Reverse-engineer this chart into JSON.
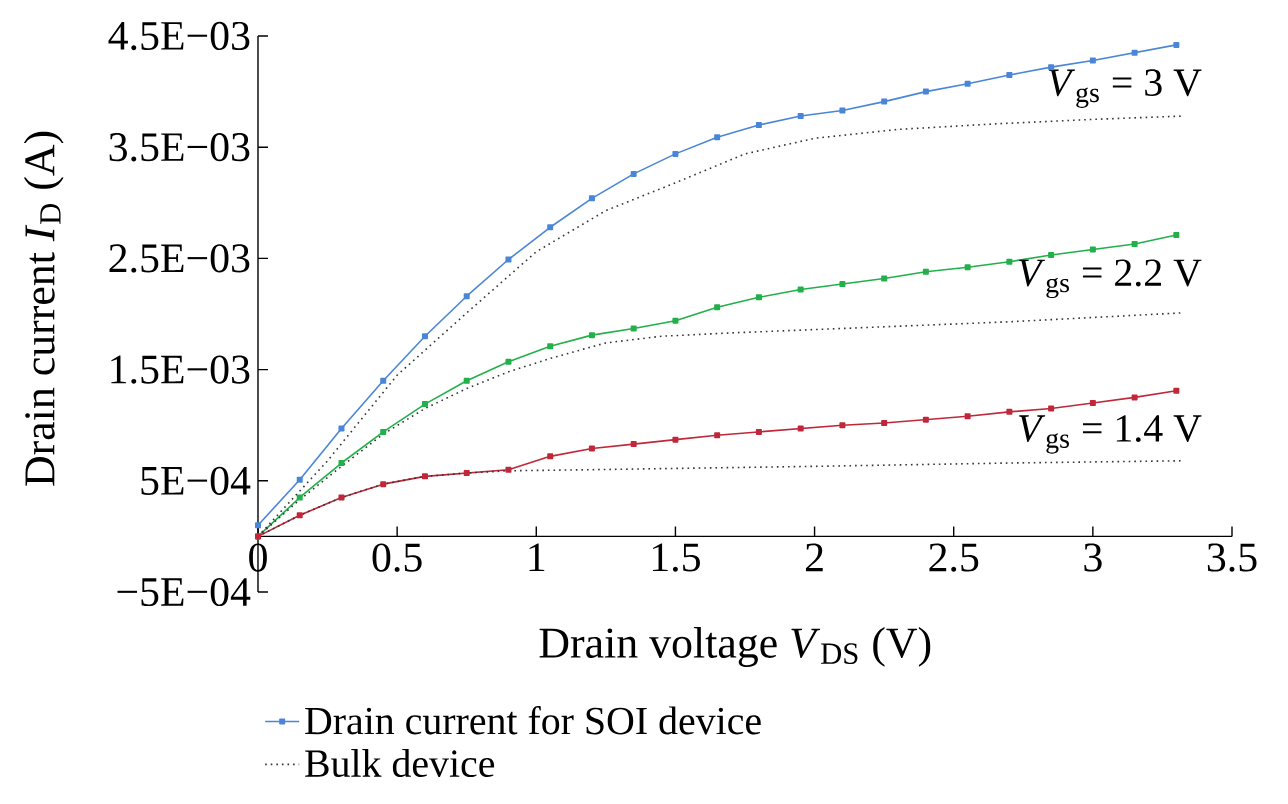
{
  "chart_data": {
    "type": "line",
    "xlabel": "Drain voltage *V*$_{DS}$ (V)",
    "ylabel": "Drain current *I*$_{D}$ (A)",
    "xlim": [
      0,
      3.5
    ],
    "xticks": [
      0,
      0.5,
      1,
      1.5,
      2,
      2.5,
      3,
      3.5
    ],
    "ylim": [
      -0.0005,
      0.0045
    ],
    "yticks": [
      {
        "value": -0.0005,
        "label": "−5E−04"
      },
      {
        "value": 0.0005,
        "label": "5E−04"
      },
      {
        "value": 0.0015,
        "label": "1.5E−03"
      },
      {
        "value": 0.0025,
        "label": "2.5E−03"
      },
      {
        "value": 0.0035,
        "label": "3.5E−03"
      },
      {
        "value": 0.0045,
        "label": "4.5E−03"
      }
    ],
    "legend": "bottom",
    "series": [
      {
        "name": "Drain current for SOI device",
        "color": "#4a86d8",
        "marker": "square",
        "line_style": "solid",
        "x": [
          0,
          0.15,
          0.3,
          0.45,
          0.6,
          0.75,
          0.9,
          1.05,
          1.2,
          1.35,
          1.5,
          1.65,
          1.8,
          1.95,
          2.1,
          2.25,
          2.4,
          2.55,
          2.7,
          2.85,
          3.0,
          3.15,
          3.3
        ],
        "values": [
          0.0001,
          0.00051,
          0.00097,
          0.0014,
          0.0018,
          0.00216,
          0.00249,
          0.00278,
          0.00304,
          0.00326,
          0.00344,
          0.00359,
          0.0037,
          0.00378,
          0.00383,
          0.00391,
          0.004,
          0.00407,
          0.00415,
          0.00422,
          0.00428,
          0.00435,
          0.00442
        ]
      },
      {
        "color": "#22b04a",
        "marker": "square",
        "line_style": "solid",
        "x": [
          0,
          0.15,
          0.3,
          0.45,
          0.6,
          0.75,
          0.9,
          1.05,
          1.2,
          1.35,
          1.5,
          1.65,
          1.8,
          1.95,
          2.1,
          2.25,
          2.4,
          2.55,
          2.7,
          2.85,
          3.0,
          3.15,
          3.3
        ],
        "values": [
          0,
          0.00035,
          0.00066,
          0.00094,
          0.00119,
          0.0014,
          0.00157,
          0.00171,
          0.00181,
          0.00187,
          0.00194,
          0.00206,
          0.00215,
          0.00222,
          0.00227,
          0.00232,
          0.00238,
          0.00242,
          0.00247,
          0.00253,
          0.00258,
          0.00263,
          0.00271
        ]
      },
      {
        "color": "#c0283a",
        "marker": "square",
        "line_style": "solid",
        "x": [
          0,
          0.15,
          0.3,
          0.45,
          0.6,
          0.75,
          0.9,
          1.05,
          1.2,
          1.35,
          1.5,
          1.65,
          1.8,
          1.95,
          2.1,
          2.25,
          2.4,
          2.55,
          2.7,
          2.85,
          3.0,
          3.15,
          3.3
        ],
        "values": [
          0,
          0.00019,
          0.00035,
          0.00047,
          0.00054,
          0.00057,
          0.0006,
          0.00072,
          0.00079,
          0.00083,
          0.00087,
          0.00091,
          0.00094,
          0.00097,
          0.001,
          0.00102,
          0.00105,
          0.00108,
          0.00112,
          0.00115,
          0.0012,
          0.00125,
          0.00131
        ]
      },
      {
        "name": "Bulk device",
        "color": "#333333",
        "marker": "none",
        "line_style": "dotted",
        "x": [
          0,
          0.25,
          0.5,
          0.75,
          1.0,
          1.25,
          1.5,
          1.75,
          2.0,
          2.3,
          2.65,
          3.0,
          3.32
        ],
        "values": [
          0,
          0.00068,
          0.00145,
          0.00201,
          0.00256,
          0.00293,
          0.00318,
          0.00344,
          0.00358,
          0.00366,
          0.00371,
          0.00375,
          0.00378
        ]
      },
      {
        "color": "#333333",
        "marker": "none",
        "line_style": "dotted",
        "x": [
          0,
          0.15,
          0.3,
          0.45,
          0.6,
          0.75,
          0.9,
          1.05,
          1.25,
          1.45,
          1.7,
          2.2,
          2.7,
          3.32
        ],
        "values": [
          0,
          0.00033,
          0.00063,
          0.00092,
          0.00115,
          0.00133,
          0.00148,
          0.0016,
          0.00174,
          0.0018,
          0.00183,
          0.00188,
          0.00193,
          0.00201
        ]
      },
      {
        "color": "#333333",
        "marker": "none",
        "line_style": "dotted",
        "x": [
          0,
          0.15,
          0.3,
          0.45,
          0.6,
          0.75,
          0.9,
          1.2,
          2.0,
          2.7,
          3.32
        ],
        "values": [
          0,
          0.00019,
          0.00035,
          0.00047,
          0.00054,
          0.00057,
          0.00059,
          0.0006,
          0.00063,
          0.00066,
          0.00068
        ]
      }
    ],
    "annotations": [
      "*V*$_{gs}$ = 3 V",
      "*V*$_{gs}$ = 2.2 V",
      "*V*$_{gs}$ = 1.4 V"
    ]
  }
}
